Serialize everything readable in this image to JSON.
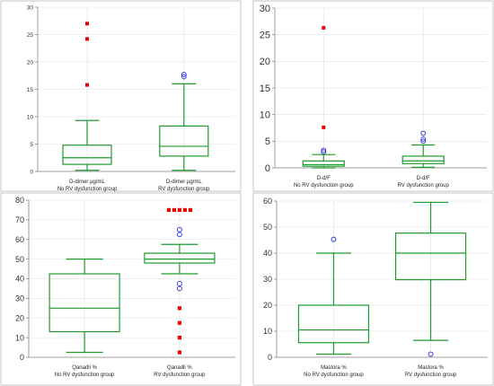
{
  "colors": {
    "box": "#1f9a2f",
    "outlier_far": "#e60000",
    "outlier_near": "#2b2bd6"
  },
  "chart_data": [
    {
      "type": "box",
      "ylim": [
        0,
        30
      ],
      "yticks": [
        0,
        5,
        10,
        15,
        20,
        25,
        30
      ],
      "grid": true,
      "legend": "none",
      "categories": [
        {
          "line1": "D-dimer µg/mL",
          "line2": "No RV dysfunction group",
          "min": 0.2,
          "q1": 1.3,
          "median": 2.5,
          "q3": 4.8,
          "max": 9.3,
          "outliers_near": [],
          "outliers_far": [
            15.8,
            24.2,
            27.0
          ]
        },
        {
          "line1": "D-dimer µg/mL",
          "line2": "RV dysfunction group",
          "min": 0.2,
          "q1": 2.8,
          "median": 4.6,
          "q3": 8.3,
          "max": 16.0,
          "outliers_near": [
            17.3,
            17.7
          ],
          "outliers_far": []
        }
      ]
    },
    {
      "type": "box",
      "ylim": [
        0,
        30
      ],
      "yticks": [
        0,
        5,
        10,
        15,
        20,
        25,
        30
      ],
      "grid": true,
      "legend": "none",
      "categories": [
        {
          "line1": "D-d/F",
          "line2": "No RV dysfunction group",
          "min": 0.0,
          "q1": 0.3,
          "median": 0.6,
          "q3": 1.3,
          "max": 2.5,
          "outliers_near": [
            3.0,
            3.3
          ],
          "outliers_far": [
            7.6,
            26.3
          ]
        },
        {
          "line1": "D-d/F",
          "line2": "RV dysfunction group",
          "min": 0.1,
          "q1": 0.8,
          "median": 1.3,
          "q3": 2.2,
          "max": 4.3,
          "outliers_near": [
            5.0,
            5.4,
            6.5
          ],
          "outliers_far": []
        }
      ]
    },
    {
      "type": "box",
      "ylim": [
        0,
        80
      ],
      "yticks": [
        0,
        10,
        20,
        30,
        40,
        50,
        60,
        70,
        80
      ],
      "grid": true,
      "legend": "none",
      "categories": [
        {
          "line1": "Qanadli %",
          "line2": "No RV dysfunction group",
          "min": 2.5,
          "q1": 13.0,
          "median": 25.0,
          "q3": 42.5,
          "max": 50.0,
          "outliers_near": [],
          "outliers_far": []
        },
        {
          "line1": "Qanadli %",
          "line2": "RV dysfunction group",
          "min": 42.5,
          "q1": 48.0,
          "median": 50.0,
          "q3": 53.0,
          "max": 57.5,
          "outliers_near": [
            35.0,
            37.5,
            62.5,
            65.0
          ],
          "outliers_far": [
            2.5,
            10.0,
            17.5,
            25.0,
            75.0
          ]
        }
      ]
    },
    {
      "type": "box",
      "ylim": [
        0,
        60
      ],
      "yticks": [
        0,
        10,
        20,
        30,
        40,
        50,
        60
      ],
      "grid": true,
      "legend": "none",
      "categories": [
        {
          "line1": "Mastora %",
          "line2": "No RV dysfunction group",
          "min": 1.2,
          "q1": 5.6,
          "median": 10.5,
          "q3": 20.0,
          "max": 40.0,
          "outliers_near": [
            45.3
          ],
          "outliers_far": []
        },
        {
          "line1": "Mastora %",
          "line2": "RV dysfunction group",
          "min": 6.5,
          "q1": 29.8,
          "median": 40.0,
          "q3": 47.7,
          "max": 59.5,
          "outliers_near": [
            1.2
          ],
          "outliers_far": []
        }
      ]
    }
  ]
}
